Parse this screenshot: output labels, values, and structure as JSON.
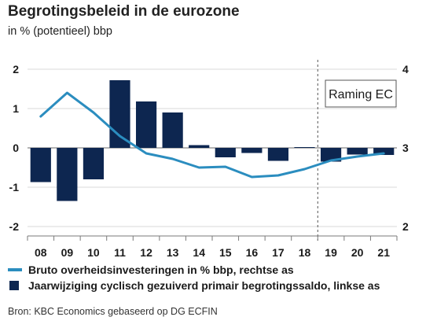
{
  "header": {
    "title": "Begrotingsbeleid in de eurozone",
    "subtitle": "in % (potentieel) bbp"
  },
  "source": "Bron: KBC Economics gebaseerd op DG ECFIN",
  "colors": {
    "bar": "#0d2650",
    "line": "#2b8dbf",
    "grid": "#d9d9d9",
    "zero": "#888888",
    "divider": "#555555"
  },
  "chart_data": {
    "type": "bar",
    "categories": [
      "08",
      "09",
      "10",
      "11",
      "12",
      "13",
      "14",
      "15",
      "16",
      "17",
      "18",
      "19",
      "20",
      "21"
    ],
    "series": [
      {
        "name": "Jaarwijziging cyclisch gezuiverd primair begrotingssaldo, linkse as",
        "type": "bar",
        "axis": "left",
        "values": [
          -0.87,
          -1.35,
          -0.8,
          1.72,
          1.18,
          0.9,
          0.07,
          -0.24,
          -0.13,
          -0.33,
          0.02,
          -0.35,
          -0.17,
          -0.18
        ]
      },
      {
        "name": "Bruto overheidsinvesteringen in % bbp, rechtse as",
        "type": "line",
        "axis": "right",
        "values": [
          3.4,
          3.7,
          3.45,
          3.15,
          2.93,
          2.86,
          2.75,
          2.76,
          2.63,
          2.65,
          2.73,
          2.84,
          2.89,
          2.93
        ]
      }
    ],
    "y_left": {
      "min": -2,
      "max": 2,
      "ticks": [
        "2",
        "1",
        "0",
        "-1",
        "-2"
      ]
    },
    "y_right": {
      "min": 2,
      "max": 4,
      "ticks": [
        "4",
        "3",
        "2"
      ]
    },
    "annotation": {
      "text": "Raming EC",
      "after_category": "18"
    },
    "grid": true,
    "legend_position": "bottom"
  }
}
